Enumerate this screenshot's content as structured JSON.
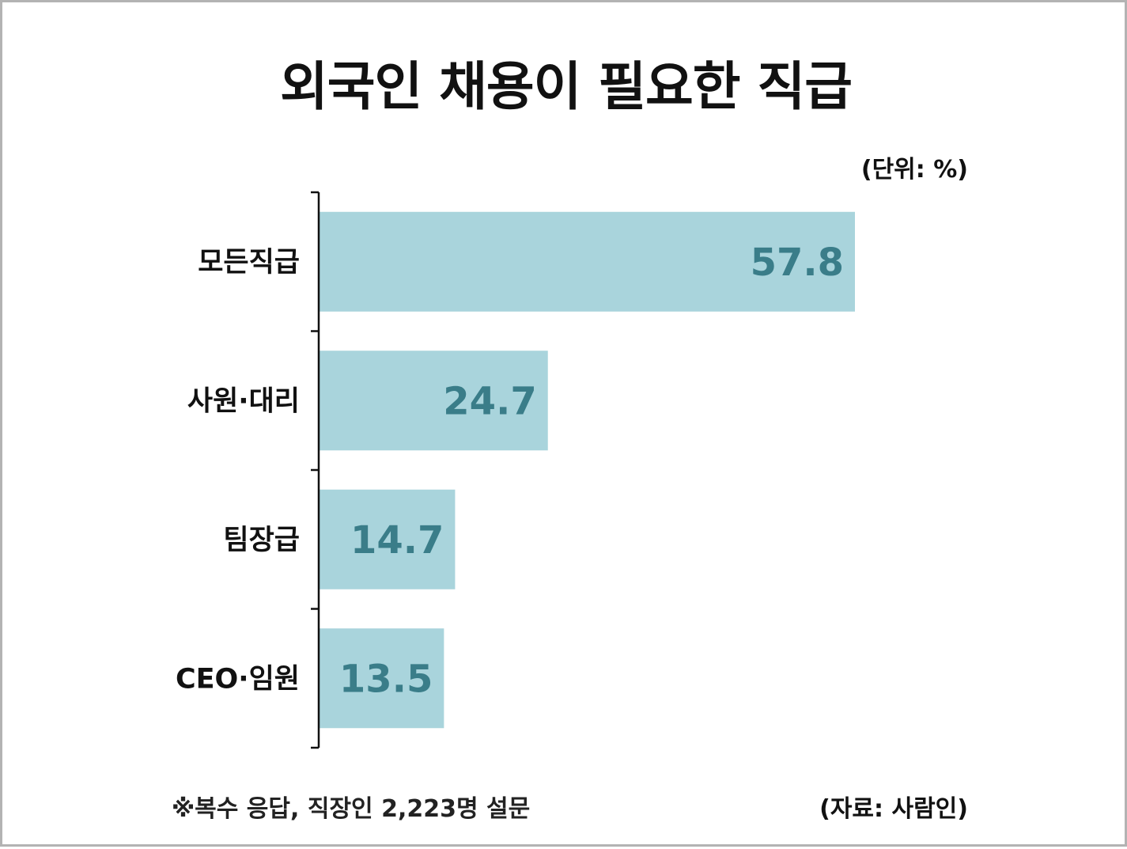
{
  "chart_data": {
    "type": "bar",
    "orientation": "horizontal",
    "title": "외국인 채용이 필요한 직급",
    "unit_label": "(단위: %)",
    "categories": [
      "모든직급",
      "사원·대리",
      "팀장급",
      "CEO·임원"
    ],
    "values": [
      57.8,
      24.7,
      14.7,
      13.5
    ],
    "value_labels": [
      "57.8",
      "24.7",
      "14.7",
      "13.5"
    ],
    "xlim": [
      0,
      100
    ],
    "grid": false,
    "legend": "none",
    "footnote": "※복수 응답, 직장인 2,223명 설문",
    "source": "(자료: 사람인)"
  },
  "colors": {
    "bar": "#a9d4dc",
    "value_text": "#3a7d89",
    "axis": "#111111"
  }
}
